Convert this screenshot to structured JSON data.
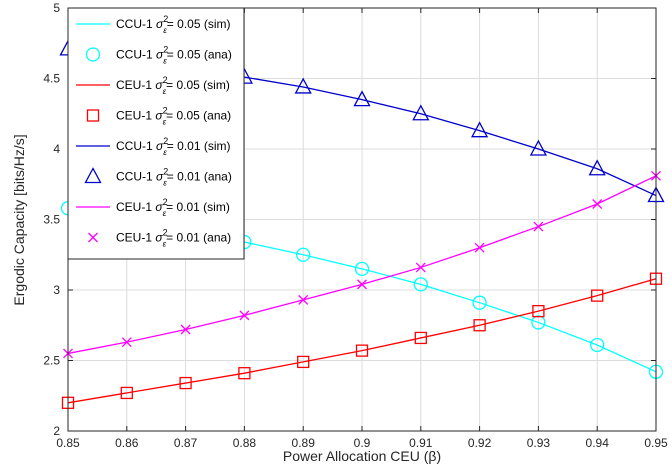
{
  "chart_data": {
    "type": "line",
    "xlabel": "Power Allocation CEU (β)",
    "ylabel": "Ergodic Capacity [bits/Hz/s]",
    "xlim": [
      0.85,
      0.95
    ],
    "ylim": [
      2,
      5
    ],
    "xticks": [
      "0.85",
      "0.86",
      "0.87",
      "0.88",
      "0.89",
      "0.9",
      "0.91",
      "0.92",
      "0.93",
      "0.94",
      "0.95"
    ],
    "yticks": [
      "2",
      "2.5",
      "3",
      "3.5",
      "4",
      "4.5",
      "5"
    ],
    "grid": true,
    "legend_position": "top-left",
    "x": [
      0.85,
      0.86,
      0.87,
      0.88,
      0.89,
      0.9,
      0.91,
      0.92,
      0.93,
      0.94,
      0.95
    ],
    "series": [
      {
        "name": "CCU-1 σ²ε= 0.05 (sim)",
        "label_main": "CCU-1",
        "label_var": "0.05",
        "label_kind": "(sim)",
        "style": "line",
        "color": "#00ffff",
        "values": [
          3.58,
          3.5,
          3.42,
          3.34,
          3.25,
          3.15,
          3.04,
          2.91,
          2.77,
          2.61,
          2.42
        ]
      },
      {
        "name": "CCU-1 σ²ε= 0.05 (ana)",
        "label_main": "CCU-1",
        "label_var": "0.05",
        "label_kind": "(ana)",
        "style": "circle",
        "color": "#00ffff",
        "values": [
          3.58,
          3.5,
          3.42,
          3.34,
          3.25,
          3.15,
          3.04,
          2.91,
          2.77,
          2.61,
          2.42
        ]
      },
      {
        "name": "CEU-1 σ²ε= 0.05 (sim)",
        "label_main": "CEU-1",
        "label_var": "0.05",
        "label_kind": "(sim)",
        "style": "line",
        "color": "#ff0000",
        "values": [
          2.2,
          2.27,
          2.34,
          2.41,
          2.49,
          2.57,
          2.66,
          2.75,
          2.85,
          2.96,
          3.08
        ]
      },
      {
        "name": "CEU-1 σ²ε= 0.05 (ana)",
        "label_main": "CEU-1",
        "label_var": "0.05",
        "label_kind": "(ana)",
        "style": "square",
        "color": "#ff0000",
        "values": [
          2.2,
          2.27,
          2.34,
          2.41,
          2.49,
          2.57,
          2.66,
          2.75,
          2.85,
          2.96,
          3.08
        ]
      },
      {
        "name": "CCU-1 σ²ε= 0.01 (sim)",
        "label_main": "CCU-1",
        "label_var": "0.01",
        "label_kind": "(sim)",
        "style": "line",
        "color": "#0000cc",
        "values": [
          4.71,
          4.64,
          4.58,
          4.51,
          4.44,
          4.35,
          4.25,
          4.13,
          4.0,
          3.86,
          3.67
        ]
      },
      {
        "name": "CCU-1 σ²ε= 0.01 (ana)",
        "label_main": "CCU-1",
        "label_var": "0.01",
        "label_kind": "(ana)",
        "style": "triangle",
        "color": "#0000cc",
        "values": [
          4.71,
          4.64,
          4.58,
          4.51,
          4.44,
          4.35,
          4.25,
          4.13,
          4.0,
          3.86,
          3.67
        ]
      },
      {
        "name": "CEU-1 σ²ε= 0.01 (sim)",
        "label_main": "CEU-1",
        "label_var": "0.01",
        "label_kind": "(sim)",
        "style": "line",
        "color": "#ff00ff",
        "values": [
          2.55,
          2.63,
          2.72,
          2.82,
          2.93,
          3.04,
          3.16,
          3.3,
          3.45,
          3.61,
          3.81
        ]
      },
      {
        "name": "CEU-1 σ²ε= 0.01 (ana)",
        "label_main": "CEU-1",
        "label_var": "0.01",
        "label_kind": "(ana)",
        "style": "x",
        "color": "#ff00ff",
        "values": [
          2.55,
          2.63,
          2.72,
          2.82,
          2.93,
          3.04,
          3.16,
          3.3,
          3.45,
          3.61,
          3.81
        ]
      }
    ]
  }
}
